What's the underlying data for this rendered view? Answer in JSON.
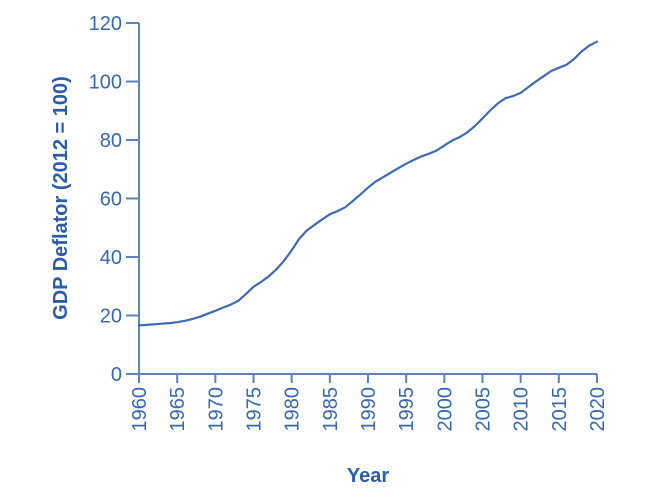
{
  "chart_data": {
    "type": "line",
    "title": "",
    "xlabel": "Year",
    "ylabel": "GDP Deflator (2012 = 100)",
    "xlim": [
      1960,
      2020
    ],
    "ylim": [
      0,
      120
    ],
    "xticks": [
      1960,
      1965,
      1970,
      1975,
      1980,
      1985,
      1990,
      1995,
      2000,
      2005,
      2010,
      2015,
      2020
    ],
    "yticks": [
      0,
      20,
      40,
      60,
      80,
      100,
      120
    ],
    "x_tick_rotation": -90,
    "grid": false,
    "legend": false,
    "series": [
      {
        "name": "GDP Deflator",
        "x": [
          1960,
          1961,
          1962,
          1963,
          1964,
          1965,
          1966,
          1967,
          1968,
          1969,
          1970,
          1971,
          1972,
          1973,
          1974,
          1975,
          1976,
          1977,
          1978,
          1979,
          1980,
          1981,
          1982,
          1983,
          1984,
          1985,
          1986,
          1987,
          1988,
          1989,
          1990,
          1991,
          1992,
          1993,
          1994,
          1995,
          1996,
          1997,
          1998,
          1999,
          2000,
          2001,
          2002,
          2003,
          2004,
          2005,
          2006,
          2007,
          2008,
          2009,
          2010,
          2011,
          2012,
          2013,
          2014,
          2015,
          2016,
          2017,
          2018,
          2019,
          2020
        ],
        "values": [
          16.6,
          16.8,
          17.0,
          17.2,
          17.4,
          17.7,
          18.2,
          18.8,
          19.6,
          20.6,
          21.6,
          22.7,
          23.7,
          25.0,
          27.3,
          29.8,
          31.5,
          33.4,
          35.8,
          38.7,
          42.3,
          46.3,
          49.1,
          51.0,
          52.9,
          54.6,
          55.7,
          57.0,
          59.1,
          61.4,
          63.7,
          65.8,
          67.3,
          68.9,
          70.4,
          71.9,
          73.2,
          74.4,
          75.3,
          76.4,
          78.1,
          79.8,
          81.0,
          82.6,
          84.8,
          87.4,
          90.1,
          92.5,
          94.3,
          95.0,
          96.1,
          98.1,
          100.0,
          101.8,
          103.6,
          104.7,
          105.7,
          107.7,
          110.3,
          112.3,
          113.6
        ],
        "color": "#3e6bb1"
      }
    ],
    "colors": {
      "background": "#ffffff",
      "axis": "#5e82bd",
      "tick_label": "#3767ae",
      "axis_title": "#2b5caa"
    }
  }
}
